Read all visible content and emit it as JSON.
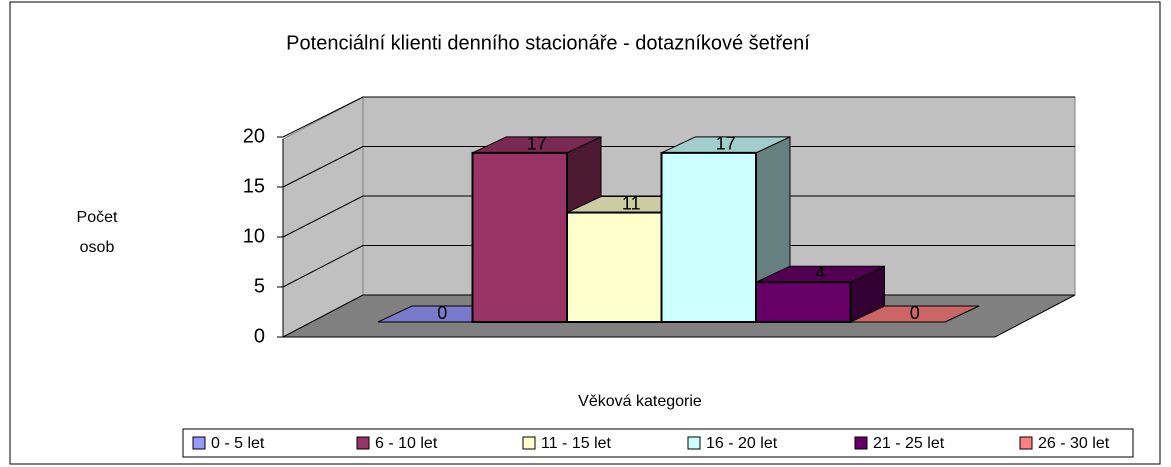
{
  "chart_data": {
    "type": "bar3d",
    "title": "Potenciální klienti denního stacionáře - dotazníkové šetření",
    "y_label": "Počet osob",
    "x_label": "Věková kategorie",
    "series": [
      {
        "name": "0 - 5 let",
        "color": "#9999ff",
        "values": [
          0
        ]
      },
      {
        "name": "6 - 10 let",
        "color": "#993366",
        "values": [
          17
        ]
      },
      {
        "name": "11 - 15 let",
        "color": "#ffffcc",
        "values": [
          11
        ]
      },
      {
        "name": "16 - 20 let",
        "color": "#ccffff",
        "values": [
          17
        ]
      },
      {
        "name": "21 - 25 let",
        "color": "#660066",
        "values": [
          4
        ]
      },
      {
        "name": "26 - 30 let",
        "color": "#ff8080",
        "values": [
          0
        ]
      }
    ],
    "ylim": [
      0,
      20
    ],
    "yticks": [
      0,
      5,
      10,
      15,
      20
    ],
    "grid": true,
    "legend": "bottom"
  }
}
